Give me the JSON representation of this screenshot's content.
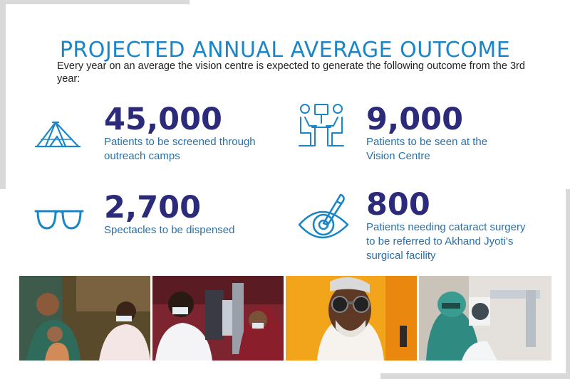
{
  "title": "PROJECTED ANNUAL AVERAGE OUTCOME",
  "intro": "Every year on an average the vision centre is expected to generate the following outcome from the 3rd year:",
  "stats": [
    {
      "number": "45,000",
      "desc_line1": "Patients to be screened through",
      "desc_line2": "outreach camps",
      "desc_line3": "",
      "icon": "tent-icon"
    },
    {
      "number": "9,000",
      "desc_line1": "Patients to be seen at the",
      "desc_line2": "Vision Centre",
      "desc_line3": "",
      "icon": "consultation-icon"
    },
    {
      "number": "2,700",
      "desc_line1": "Spectacles to be dispensed",
      "desc_line2": "",
      "desc_line3": "",
      "icon": "spectacles-icon"
    },
    {
      "number": "800",
      "desc_line1": "Patients needing cataract surgery",
      "desc_line2": "to be referred to Akhand Jyoti's",
      "desc_line3": "surgical facility",
      "icon": "eye-surgery-icon"
    }
  ],
  "colors": {
    "title": "#1b86c7",
    "number": "#2c2a7a",
    "description": "#2a6fa8",
    "icon": "#1b86c7",
    "frame": "#d9d9d9"
  },
  "photos": [
    {
      "icon": "outreach-camp-photo"
    },
    {
      "icon": "slit-lamp-exam-photo"
    },
    {
      "icon": "trial-frame-photo"
    },
    {
      "icon": "surgery-photo"
    }
  ]
}
